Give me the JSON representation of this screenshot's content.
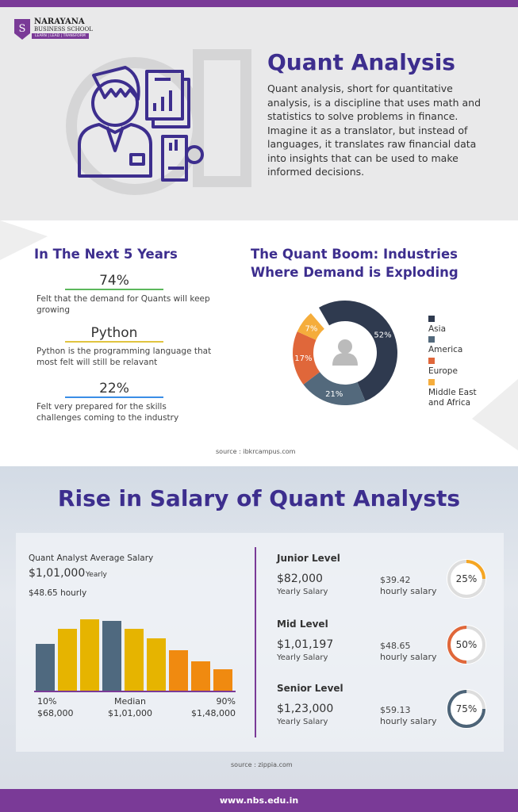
{
  "brand": {
    "name": "NARAYANA",
    "sub": "BUSINESS SCHOOL",
    "tagline": "LEARN | LEAD | TRANSFORM",
    "purple": "#7a3a97",
    "title_color": "#3d2e8e"
  },
  "intro": {
    "title": "Quant Analysis",
    "text": "Quant analysis, short for quantitative analysis, is a discipline that uses math and statistics to solve problems in finance. Imagine it as a translator, but instead of languages, it translates raw financial data into insights that can be used to make informed decisions."
  },
  "next5": {
    "title": "In The Next 5 Years",
    "items": [
      {
        "stat": "74%",
        "desc": "Felt that the demand for Quants will keep growing",
        "color": "#5cb85c"
      },
      {
        "stat": "Python",
        "desc": "Python is the programming language that most felt will still be relavant",
        "color": "#e0c440"
      },
      {
        "stat": "22%",
        "desc": "Felt very prepared for the skills challenges coming to the industry",
        "color": "#3a8ee6"
      }
    ]
  },
  "boom": {
    "title": "The Quant Boom: Industries Where Demand is Exploding",
    "source": "source : ibkrcampus.com"
  },
  "salary": {
    "title": "Rise in Salary of Quant Analysts",
    "chart_title": "Quant Analyst Average Salary",
    "yearly": "$1,01,000",
    "yearly_label": "Yearly",
    "hourly": "$48.65 hourly",
    "axis": [
      {
        "pct": "10%",
        "val": "$68,000"
      },
      {
        "pct": "Median",
        "val": "$1,01,000"
      },
      {
        "pct": "90%",
        "val": "$1,48,000"
      }
    ],
    "levels": [
      {
        "name": "Junior Level",
        "amount": "$82,000",
        "amount_label": "Yearly Salary",
        "hourly": "$39.42",
        "hourly_label": "hourly salary",
        "pct": "25%",
        "fraction": 0.25,
        "color": "#f5a623"
      },
      {
        "name": "Mid Level",
        "amount": "$1,01,197",
        "amount_label": "Yearly Salary",
        "hourly": "$48.65",
        "hourly_label": "hourly salary",
        "pct": "50%",
        "fraction": 0.5,
        "color": "#e0673a"
      },
      {
        "name": "Senior Level",
        "amount": "$1,23,000",
        "amount_label": "Yearly Salary",
        "hourly": "$59.13",
        "hourly_label": "hourly salary",
        "pct": "75%",
        "fraction": 0.75,
        "color": "#4d6478"
      }
    ],
    "source": "source : zippia.com"
  },
  "footer": {
    "url": "www.nbs.edu.in"
  },
  "chart_data": [
    {
      "type": "pie",
      "donut": true,
      "categories": [
        "Asia",
        "America",
        "Europe",
        "Middle East and Africa"
      ],
      "values": [
        52,
        21,
        17,
        7
      ],
      "labels": [
        "52%",
        "21%",
        "17%",
        "7%"
      ],
      "colors": [
        "#2f3a4f",
        "#53697c",
        "#e0673a",
        "#f5ad3c"
      ],
      "legend": "right"
    },
    {
      "type": "bar",
      "title": "Quant Analyst Average Salary",
      "values": [
        59,
        78,
        90,
        88,
        78,
        66,
        51,
        37,
        27
      ],
      "colors": [
        "#4f697f",
        "#e6b400",
        "#e6b400",
        "#4f697f",
        "#e6b400",
        "#e6b400",
        "#f08a10",
        "#f08a10",
        "#f08a10"
      ],
      "grid": false
    }
  ]
}
